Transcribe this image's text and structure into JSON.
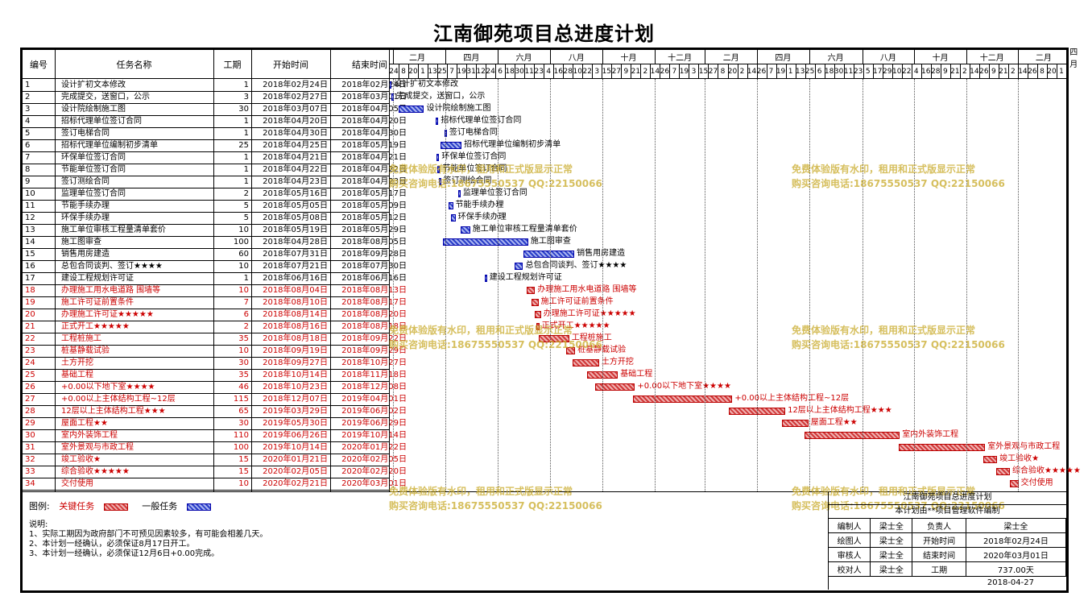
{
  "title": "江南御苑项目总进度计划",
  "columns": {
    "id": "编号",
    "name": "任务名称",
    "duration": "工期",
    "start": "开始时间",
    "end": "结束时间"
  },
  "months": [
    "二月",
    "四月",
    "六月",
    "八月",
    "十月",
    "十二月",
    "二月",
    "四月",
    "六月",
    "八月",
    "十月",
    "十二月",
    "二月",
    "四月"
  ],
  "day_ticks": [
    "24",
    "8",
    "20",
    "1",
    "13",
    "25",
    "7",
    "19",
    "31",
    "12",
    "24",
    "6",
    "18",
    "30",
    "11",
    "23",
    "4",
    "16",
    "28",
    "10",
    "22",
    "3",
    "15",
    "27",
    "9",
    "21",
    "2",
    "14",
    "26",
    "7",
    "19",
    "3",
    "15",
    "27",
    "8",
    "20",
    "2",
    "14",
    "26",
    "7",
    "19",
    "1",
    "13",
    "25",
    "6",
    "18",
    "30",
    "11",
    "23",
    "5",
    "17",
    "29",
    "10",
    "22",
    "4",
    "16",
    "28",
    "9",
    "21",
    "2",
    "14",
    "26",
    "9",
    "21",
    "2",
    "14",
    "26",
    "8",
    "20",
    "1"
  ],
  "colors": {
    "critical": "#cc0000",
    "general": "#0000cc"
  },
  "chart_data": {
    "type": "gantt",
    "x_start": "2018-02-24",
    "x_end": "2020-04-27",
    "tasks": [
      {
        "id": "1",
        "name": "设计扩初文本修改",
        "duration": "1",
        "start": "2018年02月24日",
        "end": "2018年02月24日",
        "critical": false
      },
      {
        "id": "2",
        "name": "完成提交，送窗口，公示",
        "duration": "3",
        "start": "2018年02月27日",
        "end": "2018年03月01日",
        "critical": false
      },
      {
        "id": "3",
        "name": "设计院绘制施工图",
        "duration": "30",
        "start": "2018年03月07日",
        "end": "2018年04月05日",
        "critical": false
      },
      {
        "id": "4",
        "name": "招标代理单位签订合同",
        "duration": "1",
        "start": "2018年04月20日",
        "end": "2018年04月20日",
        "critical": false
      },
      {
        "id": "5",
        "name": "签订电梯合同",
        "duration": "1",
        "start": "2018年04月30日",
        "end": "2018年04月30日",
        "critical": false
      },
      {
        "id": "6",
        "name": "招标代理单位编制初步清单",
        "duration": "25",
        "start": "2018年04月25日",
        "end": "2018年05月19日",
        "critical": false
      },
      {
        "id": "7",
        "name": "环保单位签订合同",
        "duration": "1",
        "start": "2018年04月21日",
        "end": "2018年04月21日",
        "critical": false
      },
      {
        "id": "8",
        "name": "节能单位签订合同",
        "duration": "1",
        "start": "2018年04月22日",
        "end": "2018年04月22日",
        "critical": false
      },
      {
        "id": "9",
        "name": "签订测绘合同",
        "duration": "1",
        "start": "2018年04月23日",
        "end": "2018年04月23日",
        "critical": false
      },
      {
        "id": "10",
        "name": "监理单位签订合同",
        "duration": "2",
        "start": "2018年05月16日",
        "end": "2018年05月17日",
        "critical": false
      },
      {
        "id": "11",
        "name": "节能手续办理",
        "duration": "5",
        "start": "2018年05月05日",
        "end": "2018年05月09日",
        "critical": false
      },
      {
        "id": "12",
        "name": "环保手续办理",
        "duration": "5",
        "start": "2018年05月08日",
        "end": "2018年05月12日",
        "critical": false
      },
      {
        "id": "13",
        "name": "施工单位审核工程量清单套价",
        "duration": "10",
        "start": "2018年05月19日",
        "end": "2018年05月29日",
        "critical": false
      },
      {
        "id": "14",
        "name": "施工图审查",
        "duration": "100",
        "start": "2018年04月28日",
        "end": "2018年08月05日",
        "critical": false
      },
      {
        "id": "15",
        "name": "销售用房建造",
        "duration": "60",
        "start": "2018年07月31日",
        "end": "2018年09月28日",
        "critical": false
      },
      {
        "id": "16",
        "name": "总包合同谈判、签订★★★★",
        "duration": "10",
        "start": "2018年07月21日",
        "end": "2018年07月30日",
        "critical": false
      },
      {
        "id": "17",
        "name": "建设工程规划许可证",
        "duration": "1",
        "start": "2018年06月16日",
        "end": "2018年06月16日",
        "critical": false
      },
      {
        "id": "18",
        "name": "办理施工用水电道路 围墙等",
        "duration": "10",
        "start": "2018年08月04日",
        "end": "2018年08月13日",
        "critical": true
      },
      {
        "id": "19",
        "name": "施工许可证前置条件",
        "duration": "7",
        "start": "2018年08月10日",
        "end": "2018年08月17日",
        "critical": true
      },
      {
        "id": "20",
        "name": "办理施工许可证★★★★★",
        "duration": "6",
        "start": "2018年08月14日",
        "end": "2018年08月20日",
        "critical": true
      },
      {
        "id": "21",
        "name": "正式开工★★★★★",
        "duration": "2",
        "start": "2018年08月16日",
        "end": "2018年08月18日",
        "critical": true
      },
      {
        "id": "22",
        "name": "工程桩施工",
        "duration": "35",
        "start": "2018年08月18日",
        "end": "2018年09月22日",
        "critical": true
      },
      {
        "id": "23",
        "name": "桩基静载试验",
        "duration": "10",
        "start": "2018年09月19日",
        "end": "2018年09月29日",
        "critical": true
      },
      {
        "id": "24",
        "name": "土方开挖",
        "duration": "30",
        "start": "2018年09月27日",
        "end": "2018年10月27日",
        "critical": true
      },
      {
        "id": "25",
        "name": "基础工程",
        "duration": "35",
        "start": "2018年10月14日",
        "end": "2018年11月18日",
        "critical": true
      },
      {
        "id": "26",
        "name": "+0.00以下地下室★★★★",
        "duration": "46",
        "start": "2018年10月23日",
        "end": "2018年12月08日",
        "critical": true
      },
      {
        "id": "27",
        "name": "+0.00以上主体结构工程~12层",
        "duration": "115",
        "start": "2018年12月07日",
        "end": "2019年04月01日",
        "critical": true
      },
      {
        "id": "28",
        "name": "12层以上主体结构工程★★★",
        "duration": "65",
        "start": "2019年03月29日",
        "end": "2019年06月02日",
        "critical": true
      },
      {
        "id": "29",
        "name": "屋面工程★★",
        "duration": "30",
        "start": "2019年05月30日",
        "end": "2019年06月29日",
        "critical": true
      },
      {
        "id": "30",
        "name": "室内外装饰工程",
        "duration": "110",
        "start": "2019年06月26日",
        "end": "2019年10月14日",
        "critical": true
      },
      {
        "id": "31",
        "name": "室外景观与市政工程",
        "duration": "100",
        "start": "2019年10月14日",
        "end": "2020年01月22日",
        "critical": true
      },
      {
        "id": "32",
        "name": "竣工验收★",
        "duration": "15",
        "start": "2020年01月21日",
        "end": "2020年02月05日",
        "critical": true
      },
      {
        "id": "33",
        "name": "综合验收★★★★★",
        "duration": "15",
        "start": "2020年02月05日",
        "end": "2020年02月20日",
        "critical": true
      },
      {
        "id": "34",
        "name": "交付使用",
        "duration": "10",
        "start": "2020年02月21日",
        "end": "2020年03月01日",
        "critical": true
      }
    ]
  },
  "watermark": {
    "line1": "免费体验版有水印，租用和正式版显示正常",
    "line2": "购买咨询电话:18675550537 QQ:22150066"
  },
  "legend": {
    "label": "图例:",
    "critical": "关键任务",
    "general": "一般任务"
  },
  "notes": {
    "heading": "说明:",
    "lines": [
      "1、实际工期因为政府部门不可预见因素较多，有可能会相差几天。",
      "2、本计划一经确认，必须保证8月17日开工。",
      "3、本计划一经确认，必须保证12月6日+0.00完成。"
    ]
  },
  "title_block": {
    "project": "江南御苑项目总进度计划",
    "subtitle": "本计划由**项目管理软件编制",
    "rows": [
      {
        "k1": "编制人",
        "v1": "梁士全",
        "k2": "负责人",
        "v2": "梁士全"
      },
      {
        "k1": "绘图人",
        "v1": "梁士全",
        "k2": "开始时间",
        "v2": "2018年02月24日"
      },
      {
        "k1": "审核人",
        "v1": "梁士全",
        "k2": "结束时间",
        "v2": "2020年03月01日"
      },
      {
        "k1": "校对人",
        "v1": "梁士全",
        "k2": "工期",
        "v2": "737.00天"
      }
    ],
    "date": "2018-04-27"
  }
}
